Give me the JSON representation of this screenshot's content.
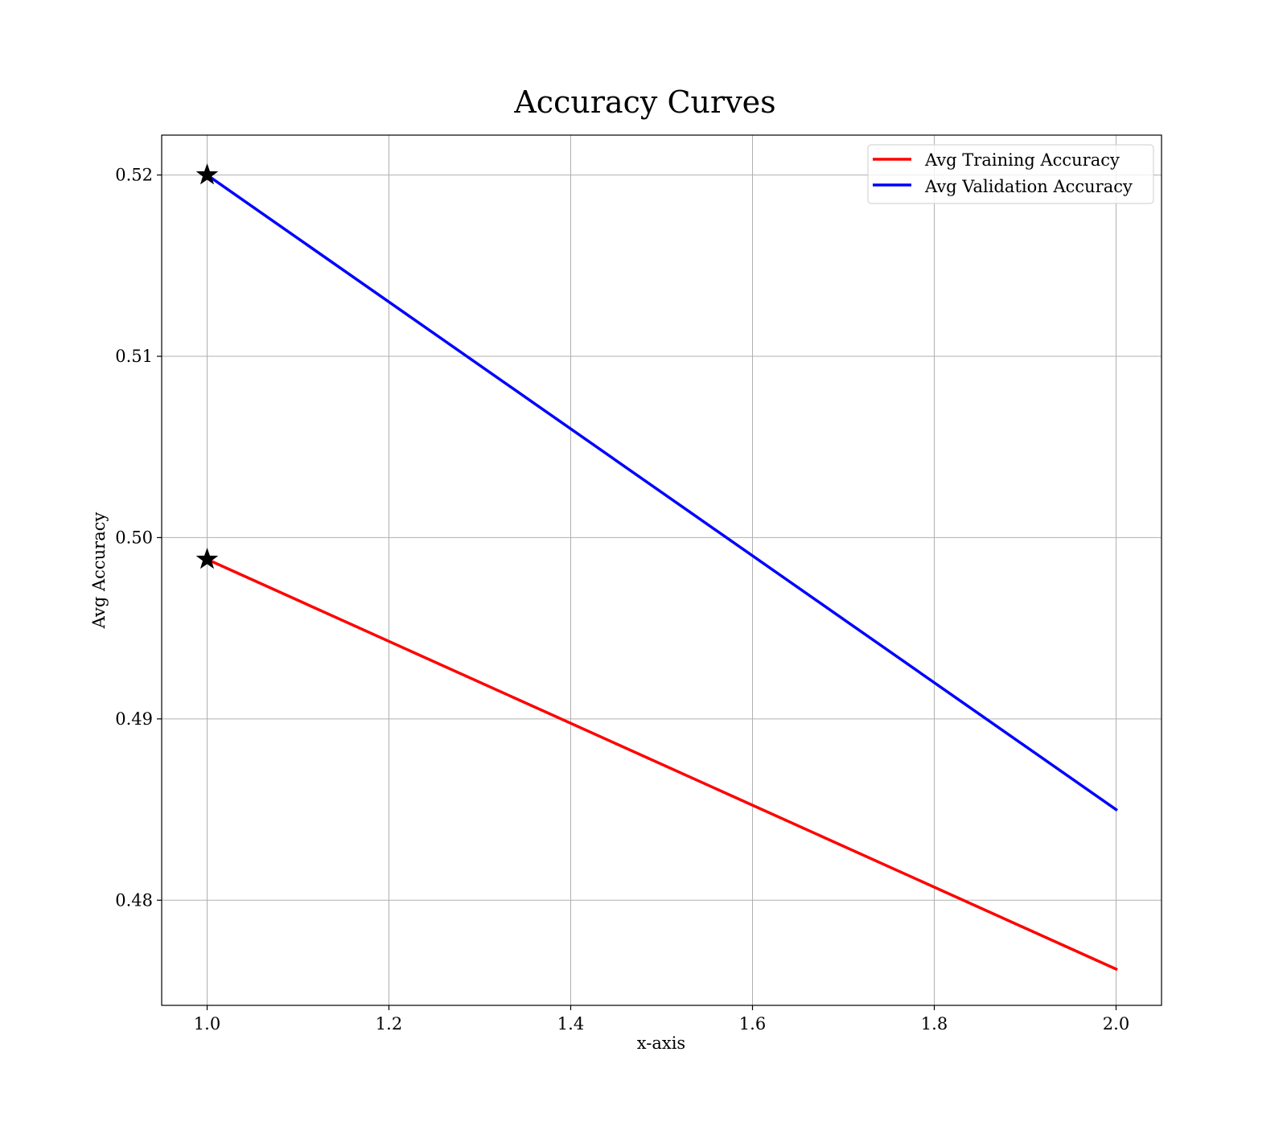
{
  "chart_data": {
    "type": "line",
    "title": "Accuracy Curves",
    "xlabel": "x-axis",
    "ylabel": "Avg Accuracy",
    "x": [
      1.0,
      2.0
    ],
    "xlim": [
      0.95,
      2.05
    ],
    "ylim": [
      0.4742,
      0.5222
    ],
    "xticks": [
      1.0,
      1.2,
      1.4,
      1.6,
      1.8,
      2.0
    ],
    "xtick_labels": [
      "1.0",
      "1.2",
      "1.4",
      "1.6",
      "1.8",
      "2.0"
    ],
    "yticks": [
      0.48,
      0.49,
      0.5,
      0.51,
      0.52
    ],
    "ytick_labels": [
      "0.48",
      "0.49",
      "0.50",
      "0.51",
      "0.52"
    ],
    "grid": true,
    "legend_position": "top-right",
    "series": [
      {
        "name": "Avg Training Accuracy",
        "values": [
          0.4988,
          0.4762
        ],
        "color": "#ff0000"
      },
      {
        "name": "Avg Validation Accuracy",
        "values": [
          0.52,
          0.485
        ],
        "color": "#0000ff"
      }
    ],
    "markers": [
      {
        "x": 1.0,
        "y": 0.52,
        "symbol": "star",
        "color": "#000000"
      },
      {
        "x": 1.0,
        "y": 0.4988,
        "symbol": "star",
        "color": "#000000"
      }
    ]
  }
}
